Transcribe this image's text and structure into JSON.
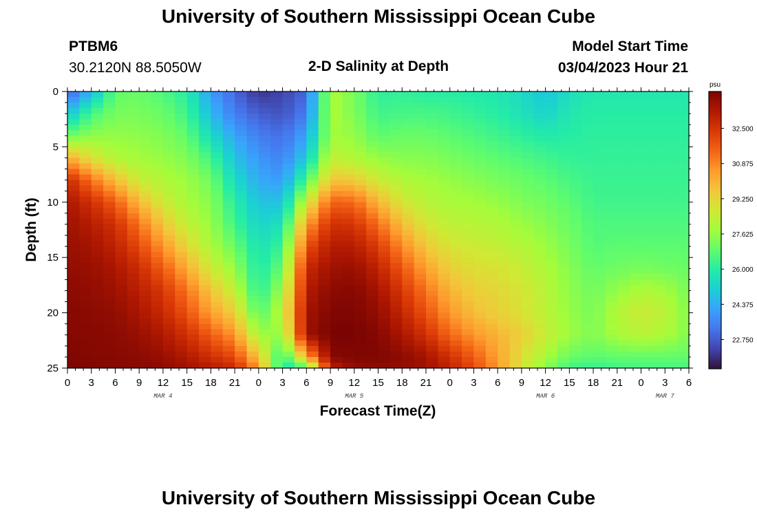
{
  "page": {
    "title": "University of Southern Mississippi Ocean Cube",
    "footer_title": "University of Southern Mississippi Ocean Cube",
    "station": "PTBM6",
    "coordinates": "30.2120N  88.5050W",
    "subtitle": "2-D Salinity at Depth",
    "model_start_label": "Model Start Time",
    "model_start_value": "03/04/2023 Hour 21"
  },
  "chart_data": {
    "type": "heatmap",
    "title": "2-D Salinity at Depth",
    "xlabel": "Forecast Time(Z)",
    "ylabel": "Depth (ft)",
    "colorbar_unit": "psu",
    "colorbar_ticks": [
      "32.500",
      "30.875",
      "29.250",
      "27.625",
      "26.000",
      "24.375",
      "22.750"
    ],
    "colorbar_values": [
      32.5,
      30.875,
      29.25,
      27.625,
      26.0,
      24.375,
      22.75
    ],
    "value_range": [
      21.4,
      34.2
    ],
    "x_range_hours": [
      0,
      78
    ],
    "x_tick_labels": [
      "0",
      "3",
      "6",
      "9",
      "12",
      "15",
      "18",
      "21",
      "0",
      "3",
      "6",
      "9",
      "12",
      "15",
      "18",
      "21",
      "0",
      "3",
      "6",
      "9",
      "12",
      "15",
      "18",
      "21",
      "0",
      "3",
      "6"
    ],
    "day_labels": [
      {
        "label": "MAR 4",
        "hour": 12
      },
      {
        "label": "MAR 5",
        "hour": 36
      },
      {
        "label": "MAR 6",
        "hour": 60
      },
      {
        "label": "MAR 7",
        "hour": 75
      }
    ],
    "y_range_ft": [
      0,
      25
    ],
    "y_tick_labels": [
      "0",
      "5",
      "10",
      "15",
      "20",
      "25"
    ],
    "y_tick_values": [
      0,
      5,
      10,
      15,
      20,
      25
    ],
    "colormap": [
      "#30123b",
      "#4145ab",
      "#4675ed",
      "#39a2fc",
      "#1bcfd4",
      "#24eca6",
      "#61fc6c",
      "#a4fc3b",
      "#d1e834",
      "#f3c63a",
      "#fe9b2d",
      "#f36315",
      "#d93806",
      "#b11901",
      "#7a0402"
    ],
    "field_description_points": {
      "depths_ft": [
        0,
        2,
        4,
        6,
        8,
        10,
        12,
        14,
        16,
        18,
        20,
        22,
        24,
        25
      ],
      "hours": [
        0,
        3,
        6,
        9,
        12,
        15,
        18,
        21,
        24,
        27,
        30,
        33,
        36,
        39,
        42,
        45,
        48,
        51,
        54,
        57,
        60,
        63,
        66,
        69,
        72,
        75,
        78
      ],
      "values": [
        [
          22.8,
          24.5,
          26.9,
          27.0,
          26.6,
          26.0,
          24.0,
          23.0,
          22.0,
          22.3,
          23.0,
          28.0,
          27.2,
          26.1,
          26.2,
          26.0,
          26.0,
          25.9,
          25.8,
          25.4,
          24.8,
          25.5,
          25.8,
          25.8,
          25.8,
          25.8,
          25.8
        ],
        [
          24.8,
          26.5,
          27.2,
          27.2,
          27.0,
          26.4,
          24.6,
          23.4,
          22.8,
          22.6,
          23.4,
          28.0,
          27.3,
          26.4,
          26.5,
          26.5,
          26.4,
          26.2,
          26.0,
          25.6,
          25.2,
          25.8,
          26.0,
          26.0,
          26.0,
          26.0,
          26.0
        ],
        [
          27.0,
          27.5,
          27.6,
          27.5,
          27.3,
          26.9,
          25.4,
          24.2,
          23.4,
          23.1,
          24.2,
          27.8,
          27.6,
          26.8,
          27.0,
          27.0,
          26.8,
          26.6,
          26.4,
          26.1,
          25.9,
          26.0,
          26.1,
          26.1,
          26.1,
          26.1,
          26.1
        ],
        [
          30.2,
          28.9,
          28.0,
          27.8,
          27.6,
          27.3,
          26.4,
          24.8,
          23.9,
          23.5,
          25.0,
          28.4,
          28.0,
          27.6,
          27.4,
          27.4,
          27.2,
          27.0,
          26.8,
          26.6,
          26.4,
          26.2,
          26.2,
          26.2,
          26.2,
          26.2,
          26.2
        ],
        [
          32.8,
          31.2,
          29.8,
          28.5,
          28.0,
          27.7,
          27.1,
          25.4,
          24.3,
          24.0,
          26.5,
          29.6,
          29.5,
          28.6,
          28.0,
          27.8,
          27.6,
          27.4,
          27.2,
          27.0,
          26.8,
          26.5,
          26.3,
          26.3,
          26.3,
          26.3,
          26.3
        ],
        [
          33.4,
          32.6,
          31.6,
          29.9,
          28.6,
          27.9,
          27.4,
          26.0,
          24.8,
          24.8,
          28.5,
          31.5,
          31.4,
          30.0,
          28.8,
          28.2,
          27.9,
          27.8,
          27.6,
          27.3,
          27.1,
          26.8,
          26.4,
          26.4,
          26.4,
          26.4,
          26.4
        ],
        [
          33.6,
          33.2,
          32.6,
          31.2,
          29.6,
          28.4,
          27.6,
          26.4,
          25.2,
          25.6,
          30.4,
          32.6,
          32.5,
          31.3,
          29.8,
          28.8,
          28.3,
          28.2,
          28.0,
          27.7,
          27.4,
          27.0,
          26.6,
          26.6,
          26.6,
          26.6,
          26.6
        ],
        [
          33.7,
          33.5,
          33.0,
          32.0,
          30.6,
          29.2,
          27.9,
          27.0,
          25.6,
          26.3,
          31.8,
          33.2,
          33.2,
          32.3,
          30.8,
          29.6,
          28.8,
          28.6,
          28.4,
          28.1,
          27.7,
          27.2,
          26.7,
          26.8,
          26.8,
          26.8,
          26.8
        ],
        [
          33.8,
          33.7,
          33.4,
          32.7,
          31.6,
          30.2,
          28.6,
          27.6,
          25.8,
          27.0,
          32.8,
          33.6,
          33.7,
          33.0,
          31.7,
          30.4,
          29.4,
          29.0,
          28.9,
          28.5,
          28.0,
          27.4,
          26.9,
          27.1,
          27.2,
          27.1,
          27.0
        ],
        [
          33.9,
          33.8,
          33.6,
          33.1,
          32.4,
          31.2,
          29.6,
          28.4,
          26.0,
          27.8,
          33.2,
          33.9,
          34.0,
          33.5,
          32.4,
          31.2,
          30.0,
          29.4,
          29.2,
          28.8,
          28.2,
          27.5,
          27.1,
          27.6,
          28.0,
          27.8,
          27.2
        ],
        [
          34.0,
          33.9,
          33.8,
          33.4,
          32.8,
          31.8,
          30.4,
          29.4,
          26.6,
          28.3,
          33.5,
          34.1,
          34.1,
          33.8,
          32.9,
          31.8,
          30.6,
          29.8,
          29.4,
          28.9,
          28.3,
          27.6,
          27.2,
          28.1,
          28.6,
          28.3,
          27.3
        ],
        [
          34.0,
          34.0,
          33.9,
          33.7,
          33.3,
          32.6,
          31.6,
          30.6,
          27.8,
          27.6,
          33.6,
          34.2,
          34.2,
          34.0,
          33.4,
          32.6,
          31.4,
          30.6,
          30.0,
          29.4,
          28.5,
          27.7,
          27.3,
          27.9,
          28.2,
          28.0,
          27.3
        ],
        [
          34.1,
          34.0,
          34.0,
          33.9,
          33.7,
          33.3,
          32.6,
          32.0,
          29.6,
          26.0,
          30.2,
          34.0,
          34.1,
          34.1,
          33.9,
          33.5,
          32.6,
          31.6,
          30.4,
          29.0,
          27.9,
          27.0,
          26.8,
          26.9,
          26.9,
          26.9,
          26.9
        ],
        [
          34.1,
          34.1,
          34.0,
          34.0,
          33.9,
          33.6,
          33.2,
          32.8,
          30.6,
          25.6,
          26.4,
          33.0,
          33.8,
          33.9,
          33.8,
          33.6,
          33.0,
          32.0,
          30.6,
          28.8,
          27.4,
          26.4,
          26.2,
          26.4,
          26.5,
          26.5,
          26.5
        ]
      ]
    }
  }
}
